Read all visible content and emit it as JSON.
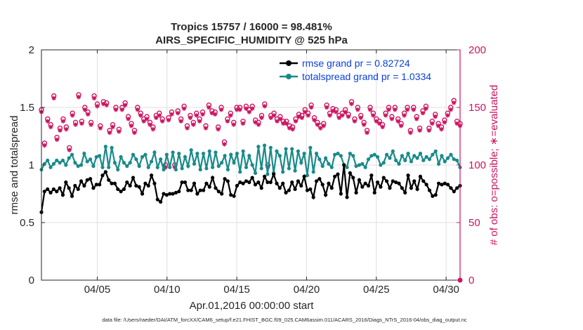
{
  "chart_data": {
    "type": "line",
    "title_line1": "Tropics 15757 / 16000 = 98.481%",
    "title_line2": "AIRS_SPECIFIC_HUMIDITY @ 525 hPa",
    "xlabel": "Apr.01,2016 00:00:00 start",
    "ylabel_left": "rmse and totalspread",
    "ylabel_right": "# of obs: o=possible; ∗=evaluated",
    "footer": "data file: /Users/raeder/DAI/ATM_forcXX/CAM6_setup/f.e21.FHIST_BGC.f09_025.CAM6assim.011/ACARS_2016/Diags_NTrS_2016-04/obs_diag_output.nc",
    "xlim": [
      1,
      31
    ],
    "ylim_left": [
      0,
      2
    ],
    "ylim_right": [
      0,
      200
    ],
    "x_ticks": [
      5,
      10,
      15,
      20,
      25,
      30
    ],
    "x_tick_labels": [
      "04/05",
      "04/10",
      "04/15",
      "04/20",
      "04/25",
      "04/30"
    ],
    "y_left_ticks": [
      0,
      0.5,
      1,
      1.5,
      2
    ],
    "y_left_tick_labels": [
      "0",
      "0.5",
      "1",
      "1.5",
      "2"
    ],
    "y_right_ticks": [
      0,
      50,
      100,
      150,
      200
    ],
    "y_right_tick_labels": [
      "0",
      "50",
      "100",
      "150",
      "200"
    ],
    "colors": {
      "rmse": "#000000",
      "spread": "#1a8a8a",
      "obs": "#cc1460",
      "axis": "#262626",
      "right_axis": "#cc1460"
    },
    "series": [
      {
        "name": "rmse",
        "legend": "rmse grand pr = 0.82724",
        "values": [
          0.59,
          0.77,
          0.79,
          0.76,
          0.79,
          0.77,
          0.8,
          0.74,
          0.85,
          0.8,
          0.73,
          0.82,
          0.79,
          0.86,
          0.82,
          0.87,
          0.88,
          0.8,
          0.83,
          0.83,
          0.91,
          0.94,
          0.87,
          0.84,
          0.84,
          0.79,
          0.77,
          0.79,
          0.85,
          0.82,
          0.89,
          0.82,
          0.81,
          0.75,
          0.84,
          0.82,
          0.91,
          0.84,
          0.7,
          0.68,
          0.75,
          0.74,
          0.75,
          0.75,
          0.76,
          0.77,
          0.85,
          0.85,
          0.78,
          0.78,
          0.84,
          0.75,
          0.78,
          0.78,
          0.84,
          0.81,
          0.89,
          0.8,
          0.77,
          0.75,
          0.88,
          0.86,
          0.74,
          0.73,
          0.82,
          0.85,
          0.84,
          0.86,
          0.85,
          0.89,
          0.83,
          0.85,
          0.8,
          0.9,
          0.85,
          0.85,
          0.92,
          0.84,
          0.8,
          0.84,
          0.76,
          0.78,
          0.85,
          0.79,
          0.86,
          0.82,
          0.9,
          0.78,
          0.79,
          0.72,
          0.86,
          0.88,
          0.83,
          0.74,
          0.84,
          0.8,
          0.9,
          0.92,
          0.75,
          1.0,
          0.72,
          0.93,
          0.89,
          0.76,
          0.87,
          0.81,
          0.84,
          0.82,
          0.91,
          0.76,
          0.85,
          0.81,
          0.89,
          0.86,
          0.8,
          0.86,
          0.85,
          0.84,
          0.8,
          0.76,
          0.91,
          0.8,
          0.86,
          0.79,
          0.9,
          0.86,
          0.83,
          0.78,
          0.73,
          0.74,
          0.84,
          0.83,
          0.84,
          0.83,
          0.8,
          0.77,
          0.8,
          0.82
        ]
      },
      {
        "name": "spread",
        "legend": "totalspread grand pr = 1.0334",
        "values": [
          0.96,
          1.01,
          1.04,
          0.98,
          1.01,
          1.04,
          1.02,
          1.04,
          1.0,
          1.06,
          1.09,
          1.02,
          0.99,
          1.0,
          1.1,
          1.03,
          1.05,
          0.99,
          1.07,
          1.08,
          0.98,
          1.16,
          0.98,
          1.15,
          1.02,
          0.96,
          1.07,
          1.02,
          0.99,
          1.02,
          1.09,
          1.05,
          0.99,
          1.07,
          1.09,
          0.98,
          1.03,
          1.11,
          0.98,
          1.05,
          0.96,
          1.09,
          0.98,
          1.11,
          0.96,
          1.1,
          0.97,
          1.07,
          0.99,
          1.13,
          1.01,
          1.1,
          0.96,
          1.1,
          0.97,
          1.12,
          0.98,
          1.11,
          0.99,
          1.02,
          1.08,
          0.96,
          1.09,
          1.02,
          1.1,
          0.94,
          1.12,
          0.98,
          1.08,
          1.0,
          0.93,
          1.16,
          0.97,
          1.17,
          0.92,
          1.15,
          0.93,
          1.12,
          1.08,
          0.94,
          1.14,
          0.97,
          1.14,
          0.95,
          1.12,
          1.02,
          1.1,
          0.91,
          1.15,
          0.94,
          1.1,
          1.05,
          0.99,
          1.06,
          1.01,
          0.98,
          1.09,
          1.1,
          1.08,
          1.0,
          0.98,
          1.1,
          1.08,
          0.99,
          1.0,
          1.01,
          0.98,
          1.05,
          1.08,
          1.09,
          1.07,
          1.0,
          1.02,
          1.09,
          1.06,
          1.12,
          1.04,
          1.01,
          1.08,
          1.04,
          1.1,
          1.03,
          1.08,
          1.06,
          1.1,
          1.04,
          1.07,
          1.05,
          1.09,
          1.12,
          1.01,
          1.08,
          1.03,
          1.06,
          1.09,
          1.05,
          1.04,
          0.98
        ]
      },
      {
        "name": "obs_possible",
        "values": [
          148,
          119,
          140,
          135,
          160,
          124,
          132,
          140,
          133,
          115,
          145,
          137,
          161,
          138,
          150,
          146,
          137,
          160,
          153,
          134,
          155,
          154,
          130,
          135,
          150,
          131,
          150,
          154,
          142,
          136,
          130,
          150,
          145,
          140,
          142,
          137,
          133,
          143,
          145,
          140,
          100,
          141,
          146,
          100,
          147,
          140,
          151,
          134,
          143,
          137,
          145,
          140,
          146,
          134,
          152,
          147,
          146,
          133,
          150,
          120,
          140,
          145,
          137,
          150,
          150,
          138,
          151,
          148,
          151,
          139,
          137,
          143,
          153,
          100,
          143,
          145,
          140,
          142,
          138,
          138,
          134,
          133,
          140,
          144,
          143,
          148,
          145,
          152,
          141,
          137,
          134,
          136,
          152,
          145,
          149,
          148,
          143,
          145,
          148,
          144,
          155,
          140,
          150,
          143,
          137,
          130,
          150,
          145,
          140,
          138,
          135,
          145,
          150,
          142,
          150,
          140,
          136,
          145,
          150,
          130,
          150,
          142,
          132,
          147,
          151,
          132,
          138,
          144,
          136,
          133,
          139,
          145,
          150,
          156,
          138,
          136
        ]
      },
      {
        "name": "obs_evaluated",
        "values": [
          146,
          117,
          138,
          133,
          158,
          122,
          130,
          138,
          131,
          113,
          143,
          135,
          159,
          136,
          148,
          144,
          135,
          158,
          151,
          132,
          153,
          152,
          128,
          133,
          148,
          129,
          148,
          152,
          140,
          134,
          128,
          148,
          143,
          138,
          140,
          135,
          131,
          141,
          143,
          138,
          98,
          139,
          144,
          98,
          145,
          138,
          149,
          132,
          141,
          135,
          143,
          138,
          144,
          132,
          150,
          145,
          144,
          131,
          148,
          118,
          138,
          143,
          135,
          148,
          148,
          136,
          149,
          146,
          149,
          137,
          135,
          141,
          151,
          98,
          141,
          143,
          138,
          140,
          136,
          136,
          132,
          131,
          138,
          142,
          141,
          146,
          143,
          150,
          139,
          135,
          132,
          134,
          150,
          143,
          147,
          146,
          141,
          143,
          146,
          142,
          153,
          138,
          148,
          141,
          135,
          128,
          148,
          143,
          138,
          136,
          133,
          143,
          148,
          140,
          148,
          138,
          134,
          143,
          148,
          128,
          148,
          140,
          130,
          145,
          149,
          130,
          136,
          142,
          134,
          131,
          137,
          143,
          148,
          154,
          136,
          134
        ]
      }
    ]
  }
}
